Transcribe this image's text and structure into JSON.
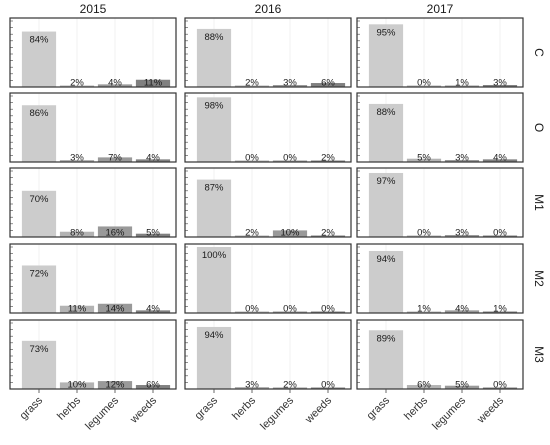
{
  "chart_data": {
    "type": "bar",
    "layout": "facet-grid",
    "columns": [
      "2015",
      "2016",
      "2017"
    ],
    "rows": [
      "C",
      "O",
      "M1",
      "M2",
      "M3"
    ],
    "categories": [
      "grass",
      "herbs",
      "legumes",
      "weeds"
    ],
    "value_unit": "%",
    "ylim": [
      0,
      100
    ],
    "grid": true,
    "panels": [
      {
        "column": "2015",
        "row": "C",
        "values": [
          84,
          2,
          4,
          11
        ]
      },
      {
        "column": "2016",
        "row": "C",
        "values": [
          88,
          2,
          3,
          6
        ]
      },
      {
        "column": "2017",
        "row": "C",
        "values": [
          95,
          0,
          1,
          3
        ]
      },
      {
        "column": "2015",
        "row": "O",
        "values": [
          86,
          3,
          7,
          4
        ]
      },
      {
        "column": "2016",
        "row": "O",
        "values": [
          98,
          0,
          0,
          2
        ]
      },
      {
        "column": "2017",
        "row": "O",
        "values": [
          88,
          5,
          3,
          4
        ]
      },
      {
        "column": "2015",
        "row": "M1",
        "values": [
          70,
          8,
          16,
          5
        ]
      },
      {
        "column": "2016",
        "row": "M1",
        "values": [
          87,
          2,
          10,
          2
        ]
      },
      {
        "column": "2017",
        "row": "M1",
        "values": [
          97,
          0,
          3,
          0
        ]
      },
      {
        "column": "2015",
        "row": "M2",
        "values": [
          72,
          11,
          14,
          4
        ]
      },
      {
        "column": "2016",
        "row": "M2",
        "values": [
          100,
          0,
          0,
          0
        ]
      },
      {
        "column": "2017",
        "row": "M2",
        "values": [
          94,
          1,
          4,
          1
        ]
      },
      {
        "column": "2015",
        "row": "M3",
        "values": [
          73,
          10,
          12,
          6
        ]
      },
      {
        "column": "2016",
        "row": "M3",
        "values": [
          94,
          3,
          2,
          0
        ]
      },
      {
        "column": "2017",
        "row": "M3",
        "values": [
          89,
          6,
          5,
          0
        ]
      }
    ],
    "colors": {
      "grass": "#cccccc",
      "herbs": "#b3b3b3",
      "legumes": "#999999",
      "weeds": "#808080",
      "panel_border": "#333333",
      "gridline": "#e6e6e6"
    }
  }
}
